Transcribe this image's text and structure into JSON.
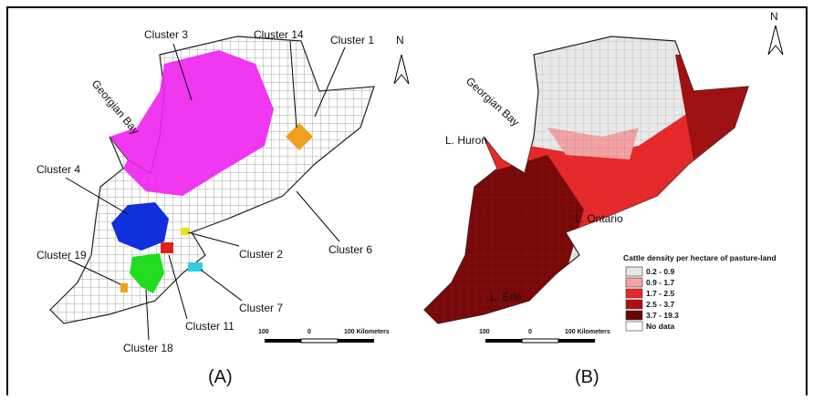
{
  "panel_a": {
    "caption": "(A)",
    "water_label": "Georgian Bay",
    "north": "N",
    "clusters": [
      "Cluster 3",
      "Cluster 14",
      "Cluster 1",
      "Cluster 4",
      "Cluster 2",
      "Cluster 6",
      "Cluster 19",
      "Cluster 7",
      "Cluster 11",
      "Cluster 18"
    ],
    "scale": {
      "left": "100",
      "mid": "0",
      "right": "100 Kilometers"
    }
  },
  "panel_b": {
    "caption": "(B)",
    "water_label": "Georgian Bay",
    "north": "N",
    "lakes": [
      "L. Huron",
      "L. Ontario",
      "L. Erie"
    ],
    "scale": {
      "left": "100",
      "mid": "0",
      "right": "100 Kilometers"
    },
    "legend": {
      "title": "Cattle density per hectare of pasture-land",
      "items": [
        {
          "label": "0.2 - 0.9",
          "color": "#e6e6e6"
        },
        {
          "label": "0.9 - 1.7",
          "color": "#f4a3a3"
        },
        {
          "label": "1.7 - 2.5",
          "color": "#e8282a"
        },
        {
          "label": "2.5 - 3.7",
          "color": "#b01010"
        },
        {
          "label": "3.7 - 19.3",
          "color": "#6a0606"
        },
        {
          "label": "No data",
          "color": "#ffffff"
        }
      ]
    }
  }
}
